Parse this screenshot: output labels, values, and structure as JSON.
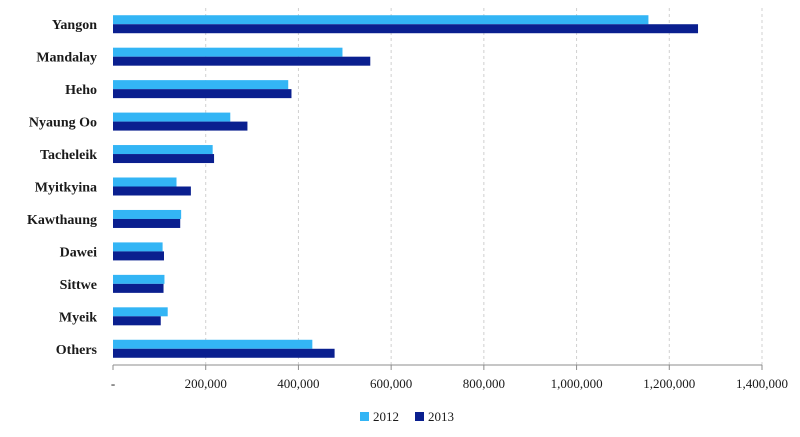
{
  "chart_data": {
    "type": "bar",
    "orientation": "horizontal",
    "categories": [
      "Yangon",
      "Mandalay",
      "Heho",
      "Nyaung Oo",
      "Tacheleik",
      "Myitkyina",
      "Kawthaung",
      "Dawei",
      "Sittwe",
      "Myeik",
      "Others"
    ],
    "series": [
      {
        "name": "2012",
        "color": "#33b5f5",
        "values": [
          1155000,
          495000,
          378000,
          253000,
          215000,
          137000,
          147000,
          107000,
          111000,
          118000,
          430000
        ]
      },
      {
        "name": "2013",
        "color": "#0a1f8f",
        "values": [
          1262000,
          555000,
          385000,
          290000,
          218000,
          168000,
          145000,
          110000,
          109000,
          103000,
          478000
        ]
      }
    ],
    "xlim": [
      0,
      1400000
    ],
    "x_ticks": [
      0,
      200000,
      400000,
      600000,
      800000,
      1000000,
      1200000,
      1400000
    ],
    "x_tick_labels": [
      "-",
      "200,000",
      "400,000",
      "600,000",
      "800,000",
      "1,000,000",
      "1,200,000",
      "1,400,000"
    ],
    "grid": true,
    "legend_position": "bottom",
    "title": "",
    "xlabel": "",
    "ylabel": ""
  }
}
